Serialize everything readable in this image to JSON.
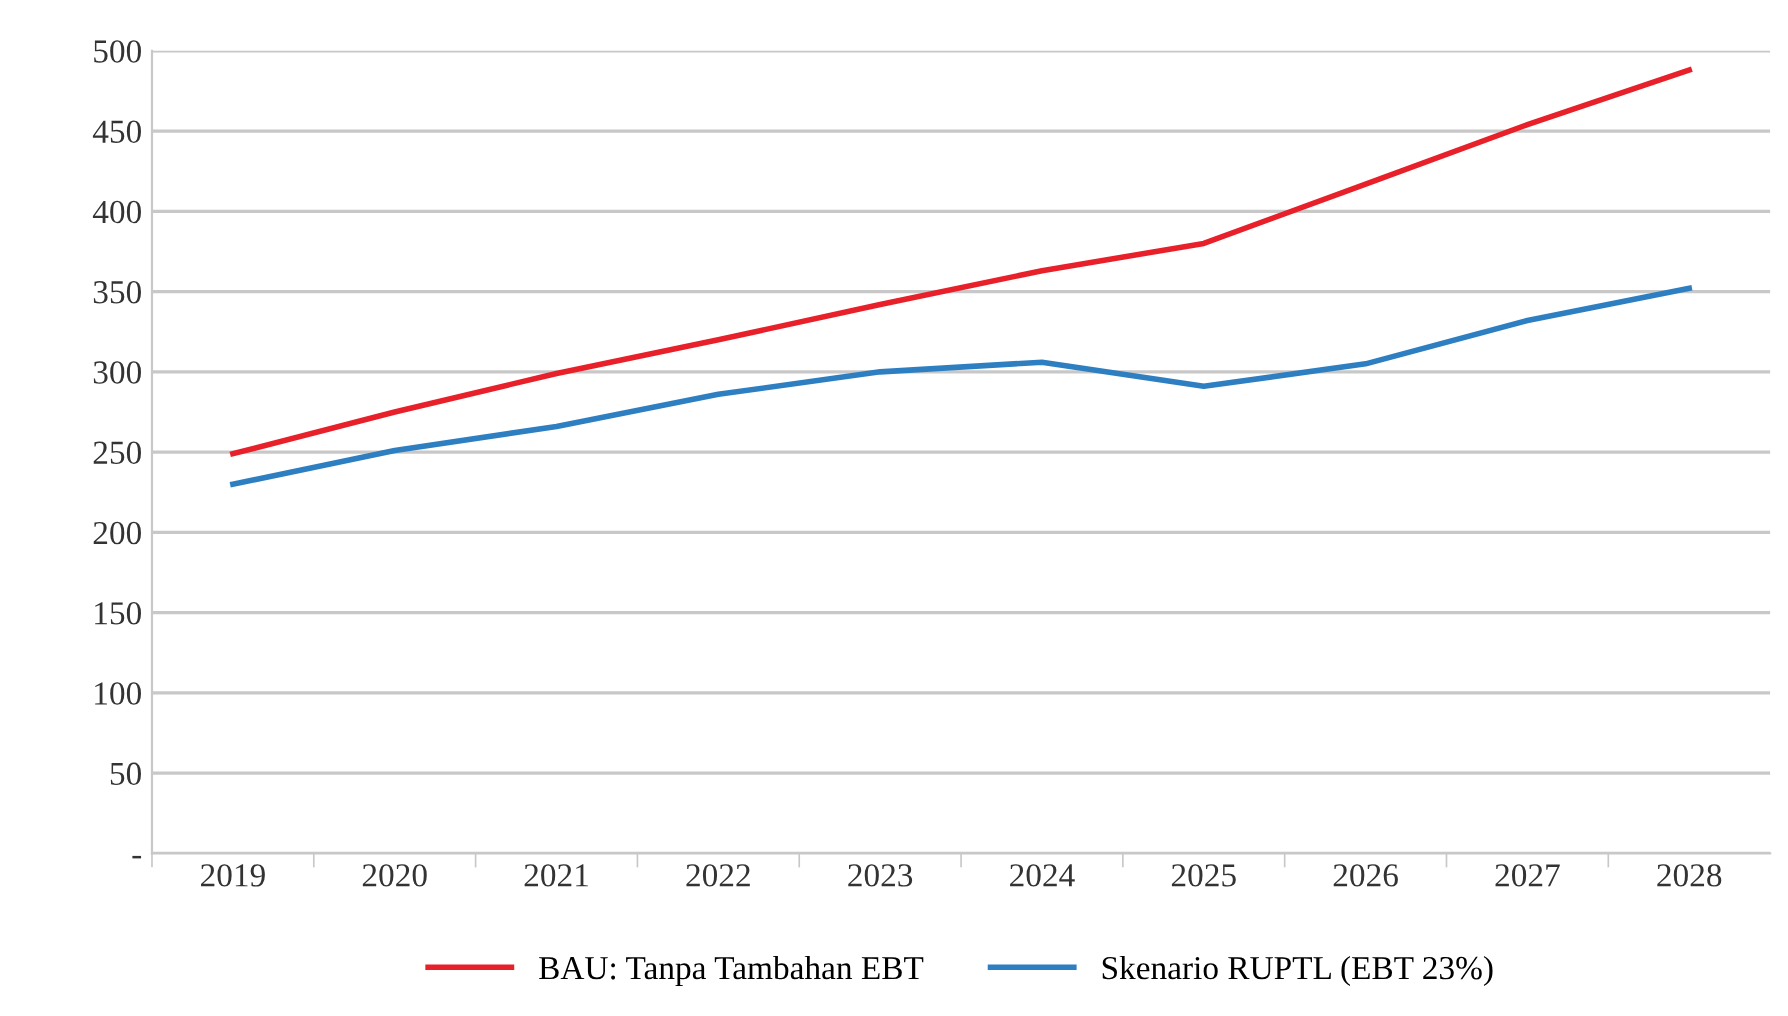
{
  "chart_data": {
    "type": "line",
    "categories": [
      "2019",
      "2020",
      "2021",
      "2022",
      "2023",
      "2024",
      "2025",
      "2026",
      "2027",
      "2028"
    ],
    "series": [
      {
        "name": "BAU: Tanpa Tambahan EBT",
        "color": "#e8202a",
        "values": [
          249,
          275,
          299,
          320,
          342,
          363,
          380,
          417,
          454,
          488
        ]
      },
      {
        "name": "Skenario RUPTL (EBT 23%)",
        "color": "#2e7fc1",
        "values": [
          230,
          251,
          266,
          286,
          300,
          306,
          291,
          305,
          332,
          352
        ]
      }
    ],
    "ylim": [
      0,
      500
    ],
    "yticks": [
      {
        "value": 0,
        "label": "-"
      },
      50,
      100,
      150,
      200,
      250,
      300,
      350,
      400,
      450,
      500
    ],
    "grid": "y",
    "legend": "bottom",
    "marker": "none",
    "line_style": "solid"
  }
}
